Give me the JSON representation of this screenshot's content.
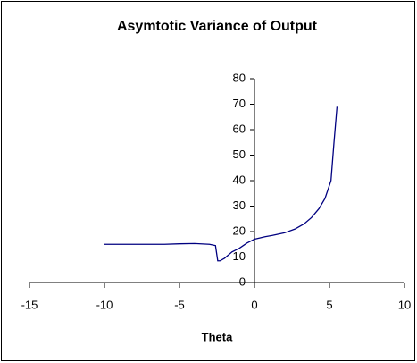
{
  "chart_data": {
    "type": "line",
    "title": "Asymtotic Variance of Output",
    "x_label": "Theta",
    "x": [
      -10,
      -8,
      -6,
      -5,
      -4,
      -3,
      -2.6,
      -2.45,
      -2.3,
      -2,
      -1.5,
      -1,
      -0.5,
      0,
      0.7,
      1.2,
      2,
      2.7,
      3.3,
      3.8,
      4.3,
      4.7,
      5.1,
      5.3,
      5.5
    ],
    "series": [
      {
        "name": "Asymtotic Variance",
        "color": "#000080",
        "values": [
          15,
          15,
          15,
          15.2,
          15.3,
          15,
          14.5,
          8.5,
          8.5,
          9.5,
          12,
          13.5,
          15.5,
          17,
          18,
          18.5,
          19.5,
          21,
          23,
          25.5,
          29,
          33,
          40,
          55,
          69
        ]
      }
    ],
    "xlim": [
      -15,
      10
    ],
    "xticks": [
      -15,
      -10,
      -5,
      0,
      5,
      10
    ],
    "ylim": [
      0,
      80
    ],
    "yticks": [
      0,
      10,
      20,
      30,
      40,
      50,
      60,
      70,
      80
    ]
  }
}
